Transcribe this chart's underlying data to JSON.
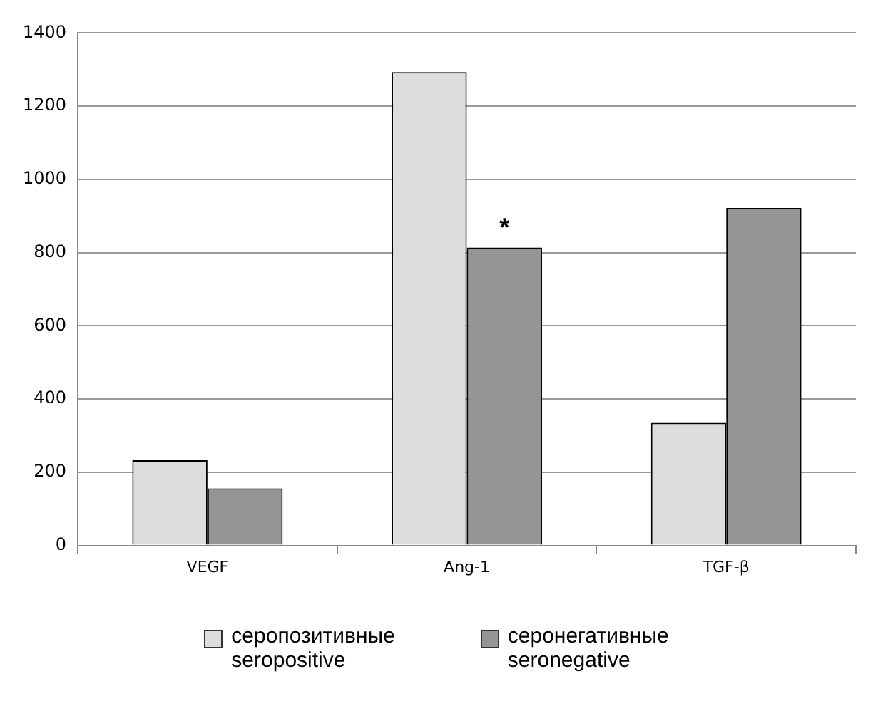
{
  "chart_data": {
    "type": "bar",
    "categories": [
      "VEGF",
      "Ang-1",
      "TGF-β"
    ],
    "series": [
      {
        "name": "серопозитивные\nseropositive",
        "color": "#dcdddf",
        "values": [
          233,
          1293,
          335
        ]
      },
      {
        "name": "серонегативные\nseronegative",
        "color": "#949596",
        "values": [
          156,
          814,
          922
        ]
      }
    ],
    "ylim": [
      0,
      1400
    ],
    "yticks": [
      0,
      200,
      400,
      600,
      800,
      1000,
      1200,
      1400
    ],
    "grid": "y",
    "legend": "bottom",
    "annotations": [
      {
        "text": "*",
        "x": "Ang-1",
        "y": 814
      }
    ]
  }
}
